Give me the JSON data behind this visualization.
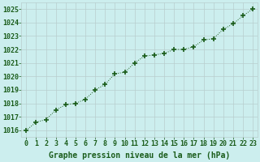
{
  "x": [
    0,
    1,
    2,
    3,
    4,
    5,
    6,
    7,
    8,
    9,
    10,
    11,
    12,
    13,
    14,
    15,
    16,
    17,
    18,
    19,
    20,
    21,
    22,
    23
  ],
  "y": [
    1016.0,
    1016.6,
    1016.8,
    1017.5,
    1017.9,
    1018.0,
    1018.3,
    1019.0,
    1019.4,
    1020.2,
    1020.3,
    1021.0,
    1021.5,
    1021.6,
    1021.7,
    1022.0,
    1022.0,
    1022.2,
    1022.7,
    1022.8,
    1023.5,
    1023.9,
    1024.5,
    1025.0
  ],
  "line_color": "#1a5c1a",
  "marker_color": "#1a5c1a",
  "bg_color": "#cceeee",
  "grid_color": "#b8cece",
  "ylabel_ticks": [
    1016,
    1017,
    1018,
    1019,
    1020,
    1021,
    1022,
    1023,
    1024,
    1025
  ],
  "xlabel": "Graphe pression niveau de la mer (hPa)",
  "ylim": [
    1015.5,
    1025.5
  ],
  "xlim": [
    -0.5,
    23.5
  ],
  "tick_color": "#1a5c1a",
  "label_color": "#1a5c1a",
  "xlabel_fontsize": 7.0,
  "tick_fontsize": 6.0,
  "spine_color": "#cccccc"
}
